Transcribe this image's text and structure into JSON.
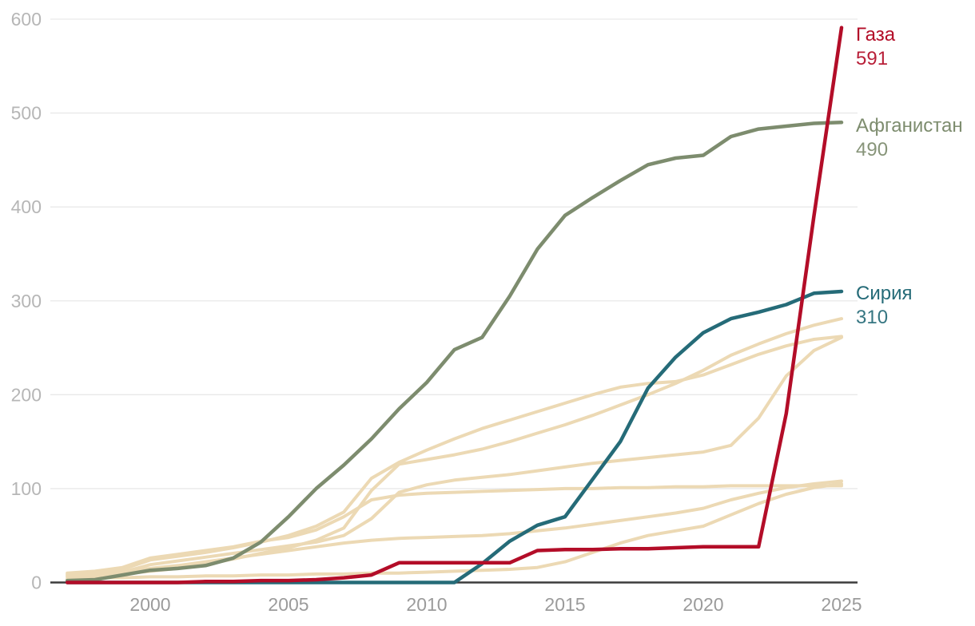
{
  "chart_data": {
    "type": "line",
    "title": "",
    "xlabel": "",
    "ylabel": "",
    "x": [
      1997,
      1998,
      1999,
      2000,
      2001,
      2002,
      2003,
      2004,
      2005,
      2006,
      2007,
      2008,
      2009,
      2010,
      2011,
      2012,
      2013,
      2014,
      2015,
      2016,
      2017,
      2018,
      2019,
      2020,
      2021,
      2022,
      2023,
      2024,
      2025
    ],
    "xlim": [
      1997,
      2025.6
    ],
    "ylim": [
      0,
      600
    ],
    "x_tick_years": [
      2000,
      2005,
      2010,
      2015,
      2020,
      2025
    ],
    "x_tick_labels": [
      "2000",
      "2005",
      "2010",
      "2015",
      "2020",
      "2025"
    ],
    "y_tick_values": [
      0,
      100,
      200,
      300,
      400,
      500,
      600
    ],
    "y_tick_labels": [
      "0",
      "100",
      "200",
      "300",
      "400",
      "500",
      "600"
    ],
    "grid": "horizontal-only",
    "legend_position": "right-end-labels",
    "colors": {
      "grid": "#e9e9e9",
      "axis": "#3c3c3c",
      "y_tick_text": "#b6b6b6",
      "x_tick_text": "#9b9b9b",
      "context_line": "#ecd9b4",
      "gaza": "#b30d28",
      "afghanistan": "#7d8c6e",
      "syria": "#256b78"
    },
    "series": [
      {
        "id": "context-1",
        "label": "",
        "color": "#ecd9b4",
        "width": 4,
        "values": [
          6,
          7,
          9,
          12,
          15,
          19,
          25,
          31,
          37,
          45,
          58,
          98,
          126,
          131,
          136,
          142,
          150,
          159,
          168,
          178,
          189,
          200,
          212,
          226,
          242,
          254,
          265,
          274,
          281
        ]
      },
      {
        "id": "context-2",
        "label": "",
        "color": "#ecd9b4",
        "width": 4,
        "values": [
          9,
          11,
          14,
          24,
          28,
          32,
          37,
          43,
          50,
          60,
          75,
          111,
          128,
          141,
          153,
          164,
          173,
          182,
          191,
          200,
          208,
          212,
          214,
          221,
          232,
          243,
          252,
          259,
          262
        ]
      },
      {
        "id": "context-3",
        "label": "",
        "color": "#ecd9b4",
        "width": 4,
        "values": [
          8,
          9,
          11,
          19,
          23,
          27,
          31,
          35,
          39,
          43,
          50,
          68,
          96,
          104,
          109,
          112,
          115,
          119,
          123,
          127,
          130,
          133,
          136,
          139,
          146,
          175,
          220,
          247,
          261
        ]
      },
      {
        "id": "context-4",
        "label": "",
        "color": "#ecd9b4",
        "width": 4,
        "values": [
          10,
          12,
          16,
          26,
          30,
          34,
          38,
          44,
          48,
          56,
          70,
          88,
          93,
          95,
          96,
          97,
          98,
          99,
          100,
          100,
          101,
          101,
          102,
          102,
          103,
          103,
          103,
          103,
          103
        ]
      },
      {
        "id": "context-5",
        "label": "",
        "color": "#ecd9b4",
        "width": 4,
        "values": [
          7,
          8,
          10,
          15,
          18,
          22,
          26,
          30,
          34,
          38,
          42,
          45,
          47,
          48,
          49,
          50,
          52,
          55,
          58,
          62,
          66,
          70,
          74,
          79,
          88,
          95,
          101,
          105,
          108
        ]
      },
      {
        "id": "context-6",
        "label": "",
        "color": "#ecd9b4",
        "width": 4,
        "values": [
          4,
          5,
          5,
          6,
          6,
          7,
          7,
          8,
          8,
          9,
          9,
          10,
          10,
          11,
          12,
          13,
          14,
          16,
          22,
          32,
          42,
          50,
          55,
          60,
          72,
          84,
          94,
          101,
          105
        ]
      },
      {
        "id": "afghanistan",
        "label": "Афганистан",
        "end_label": "490",
        "end_value": 490,
        "color": "#7d8c6e",
        "width": 4.5,
        "values": [
          2,
          3,
          8,
          13,
          15,
          18,
          26,
          43,
          70,
          100,
          125,
          153,
          185,
          213,
          248,
          261,
          305,
          355,
          391,
          410,
          428,
          445,
          452,
          455,
          475,
          483,
          486,
          489,
          490
        ]
      },
      {
        "id": "syria",
        "label": "Сирия",
        "end_label": "310",
        "end_value": 310,
        "color": "#256b78",
        "width": 4.5,
        "values": [
          0,
          0,
          0,
          0,
          0,
          0,
          0,
          0,
          0,
          0,
          0,
          0,
          0,
          0,
          0,
          20,
          44,
          61,
          70,
          110,
          150,
          207,
          240,
          266,
          281,
          288,
          296,
          308,
          310
        ]
      },
      {
        "id": "gaza",
        "label": "Газа",
        "end_label": "591",
        "end_value": 591,
        "color": "#b30d28",
        "width": 4.5,
        "values": [
          0,
          0,
          0,
          0,
          0,
          1,
          1,
          2,
          2,
          3,
          5,
          8,
          21,
          21,
          21,
          21,
          21,
          34,
          35,
          35,
          36,
          36,
          37,
          38,
          38,
          38,
          180,
          390,
          591
        ]
      }
    ]
  }
}
